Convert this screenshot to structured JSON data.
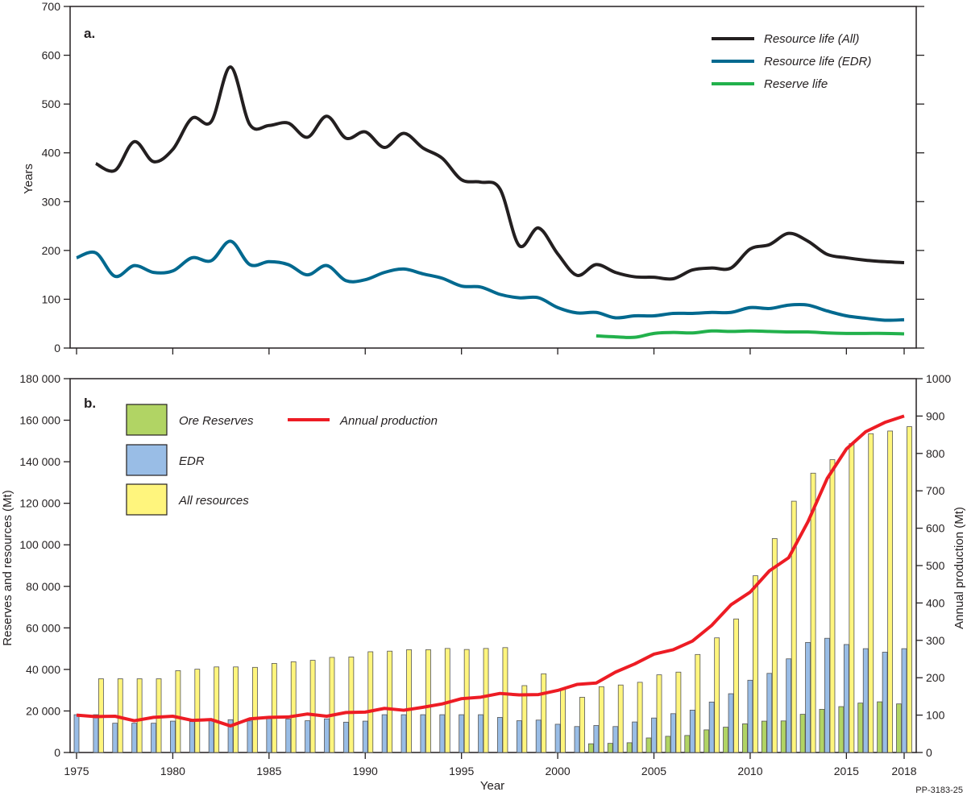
{
  "figure_id": "PP-3183-25",
  "chart_data": [
    {
      "panel_label": "a.",
      "type": "line",
      "ylabel": "Years",
      "ylim": [
        0,
        700
      ],
      "yticks": [
        0,
        100,
        200,
        300,
        400,
        500,
        600,
        700
      ],
      "xlim": [
        1975,
        2018
      ],
      "legend_position": "top-right",
      "grid": false,
      "series": [
        {
          "name": "Resource life (All)",
          "color": "#231f20",
          "x": [
            1976,
            1977,
            1978,
            1979,
            1980,
            1981,
            1982,
            1983,
            1984,
            1985,
            1986,
            1987,
            1988,
            1989,
            1990,
            1991,
            1992,
            1993,
            1994,
            1995,
            1996,
            1997,
            1998,
            1999,
            2000,
            2001,
            2002,
            2003,
            2004,
            2005,
            2006,
            2007,
            2008,
            2009,
            2010,
            2011,
            2012,
            2013,
            2014,
            2015,
            2016,
            2017,
            2018
          ],
          "y": [
            378,
            364,
            423,
            382,
            407,
            471,
            464,
            576,
            458,
            456,
            461,
            432,
            475,
            430,
            443,
            411,
            440,
            410,
            389,
            345,
            340,
            326,
            210,
            246,
            193,
            149,
            171,
            155,
            146,
            145,
            142,
            160,
            164,
            164,
            203,
            212,
            235,
            219,
            192,
            185,
            180,
            177,
            175
          ]
        },
        {
          "name": "Resource life (EDR)",
          "color": "#00698f",
          "x": [
            1975,
            1976,
            1977,
            1978,
            1979,
            1980,
            1981,
            1982,
            1983,
            1984,
            1985,
            1986,
            1987,
            1988,
            1989,
            1990,
            1991,
            1992,
            1993,
            1994,
            1995,
            1996,
            1997,
            1998,
            1999,
            2000,
            2001,
            2002,
            2003,
            2004,
            2005,
            2006,
            2007,
            2008,
            2009,
            2010,
            2011,
            2012,
            2013,
            2014,
            2015,
            2016,
            2017,
            2018
          ],
          "y": [
            185,
            195,
            147,
            169,
            155,
            158,
            185,
            179,
            219,
            171,
            177,
            171,
            150,
            169,
            138,
            140,
            155,
            162,
            152,
            143,
            127,
            125,
            110,
            103,
            103,
            83,
            72,
            73,
            62,
            66,
            66,
            71,
            71,
            73,
            73,
            83,
            81,
            88,
            88,
            76,
            66,
            61,
            57,
            58
          ]
        },
        {
          "name": "Reserve life",
          "color": "#22b14c",
          "x": [
            2002,
            2003,
            2004,
            2005,
            2006,
            2007,
            2008,
            2009,
            2010,
            2011,
            2012,
            2013,
            2014,
            2015,
            2016,
            2017,
            2018
          ],
          "y": [
            25,
            23,
            22,
            30,
            32,
            31,
            35,
            34,
            35,
            34,
            33,
            33,
            31,
            30,
            30,
            30,
            29
          ]
        }
      ]
    },
    {
      "panel_label": "b.",
      "type": "bar",
      "xlabel": "Year",
      "ylabel": "Reserves and resources (Mt)",
      "ylabel_right": "Annual production (Mt)",
      "ylim": [
        0,
        180000
      ],
      "ylim_right": [
        0,
        1000
      ],
      "yticks": [
        "0",
        "20 000",
        "40 000",
        "60 000",
        "80 000",
        "100 000",
        "120 000",
        "140 000",
        "160 000",
        "180 000"
      ],
      "yticks_right": [
        0,
        100,
        200,
        300,
        400,
        500,
        600,
        700,
        800,
        900,
        1000
      ],
      "xticks": [
        "1975",
        "1980",
        "1985",
        "1990",
        "1995",
        "2000",
        "2005",
        "2010",
        "2015",
        "2018"
      ],
      "legend_position": "top-left",
      "grid": false,
      "categories": [
        1975,
        1976,
        1977,
        1978,
        1979,
        1980,
        1981,
        1982,
        1983,
        1984,
        1985,
        1986,
        1987,
        1988,
        1989,
        1990,
        1991,
        1992,
        1993,
        1994,
        1995,
        1996,
        1997,
        1998,
        1999,
        2000,
        2001,
        2002,
        2003,
        2004,
        2005,
        2006,
        2007,
        2008,
        2009,
        2010,
        2011,
        2012,
        2013,
        2014,
        2015,
        2016,
        2017,
        2018
      ],
      "series": [
        {
          "name": "Ore Reserves",
          "color": "#b1d464",
          "axis": "left",
          "values": [
            null,
            null,
            null,
            null,
            null,
            null,
            null,
            null,
            null,
            null,
            null,
            null,
            null,
            null,
            null,
            null,
            null,
            null,
            null,
            null,
            null,
            null,
            null,
            null,
            null,
            null,
            null,
            4200,
            4400,
            4700,
            7000,
            7800,
            8200,
            10900,
            12200,
            13800,
            15100,
            15200,
            18400,
            20800,
            22100,
            23800,
            24400,
            23400
          ]
        },
        {
          "name": "EDR",
          "color": "#99bde6",
          "axis": "left",
          "values": [
            18200,
            18200,
            14100,
            14100,
            14100,
            15100,
            14900,
            15300,
            15800,
            15200,
            16300,
            16100,
            15300,
            16200,
            14600,
            15100,
            18200,
            18200,
            18200,
            18200,
            18200,
            18200,
            16900,
            15300,
            15600,
            13600,
            12500,
            13000,
            12500,
            14700,
            16600,
            18700,
            20400,
            24300,
            28300,
            34800,
            38100,
            45100,
            53000,
            55000,
            52000,
            50000,
            48300,
            50000
          ]
        },
        {
          "name": "All resources",
          "color": "#fff57d",
          "axis": "left",
          "values": [
            null,
            35500,
            35500,
            35500,
            35500,
            39400,
            40100,
            41200,
            41200,
            41000,
            42900,
            43700,
            44400,
            45800,
            46000,
            48500,
            48800,
            49500,
            49500,
            50100,
            49600,
            50100,
            50500,
            32200,
            37900,
            30900,
            26600,
            31700,
            32500,
            33800,
            37400,
            38700,
            47200,
            55200,
            64300,
            85100,
            103000,
            121000,
            134500,
            141000,
            148700,
            153500,
            154800,
            156900
          ]
        },
        {
          "name": "Annual production",
          "color": "#ed1c24",
          "axis": "right",
          "type": "line",
          "values": [
            100,
            96,
            97,
            85,
            94,
            97,
            86,
            88,
            71,
            90,
            94,
            95,
            103,
            97,
            107,
            108,
            118,
            113,
            121,
            130,
            144,
            148,
            158,
            154,
            155,
            166,
            182,
            186,
            215,
            237,
            263,
            275,
            298,
            340,
            395,
            429,
            486,
            521,
            617,
            733,
            812,
            858,
            883,
            900
          ]
        }
      ]
    }
  ]
}
